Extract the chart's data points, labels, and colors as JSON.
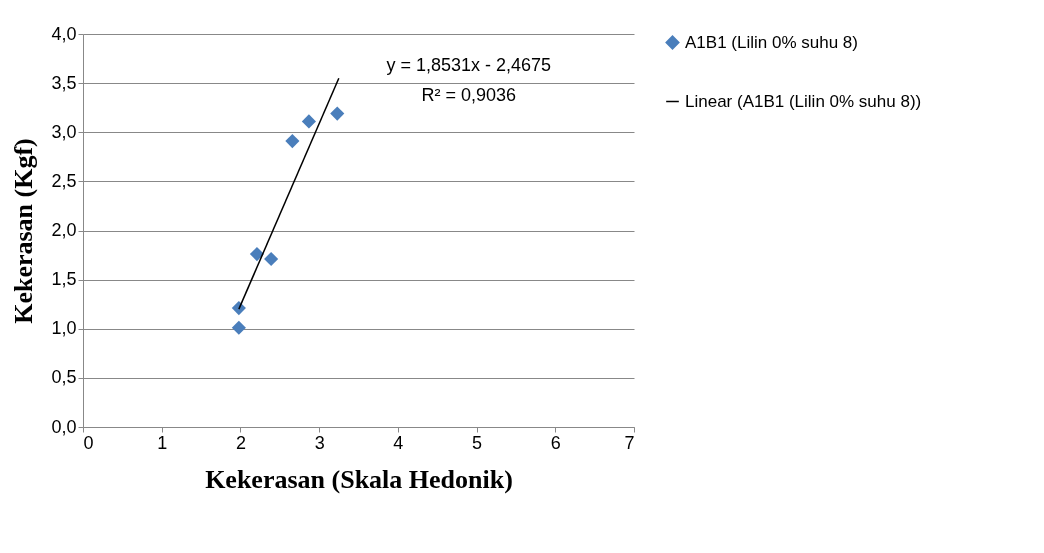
{
  "chart_data": {
    "type": "scatter",
    "xlabel": "Kekerasan (Skala Hedonik)",
    "ylabel": "Kekerasan (Kgf)",
    "xlim": [
      0,
      7
    ],
    "xticks": [
      0,
      1,
      2,
      3,
      4,
      5,
      6,
      7
    ],
    "ylim": [
      0,
      4
    ],
    "yticks": [
      {
        "value": 0,
        "label": "0,0"
      },
      {
        "value": 0.5,
        "label": "0,5"
      },
      {
        "value": 1,
        "label": "1,0"
      },
      {
        "value": 1.5,
        "label": "1,5"
      },
      {
        "value": 2,
        "label": "2,0"
      },
      {
        "value": 2.5,
        "label": "2,5"
      },
      {
        "value": 3,
        "label": "3,0"
      },
      {
        "value": 3.5,
        "label": "3,5"
      },
      {
        "value": 4,
        "label": "4,0"
      }
    ],
    "grid": "y",
    "legend": "right",
    "series": [
      {
        "name": "A1B1 (Lilin 0% suhu 8)",
        "color": "#4a7ebb",
        "marker": "diamond",
        "x": [
          1.98,
          1.98,
          2.21,
          2.39,
          2.66,
          2.87,
          3.23
        ],
        "values": [
          1.21,
          1.01,
          1.76,
          1.71,
          2.91,
          3.11,
          3.19
        ]
      },
      {
        "name": "Linear (A1B1 (Lilin 0% suhu 8))",
        "type": "line",
        "marker": "none",
        "color": "#000000",
        "x": [
          1.98,
          3.25
        ],
        "values": [
          1.2,
          3.55
        ]
      }
    ],
    "annotations": [
      "y = 1,8531x - 2,4675",
      "R² = 0,9036"
    ]
  }
}
